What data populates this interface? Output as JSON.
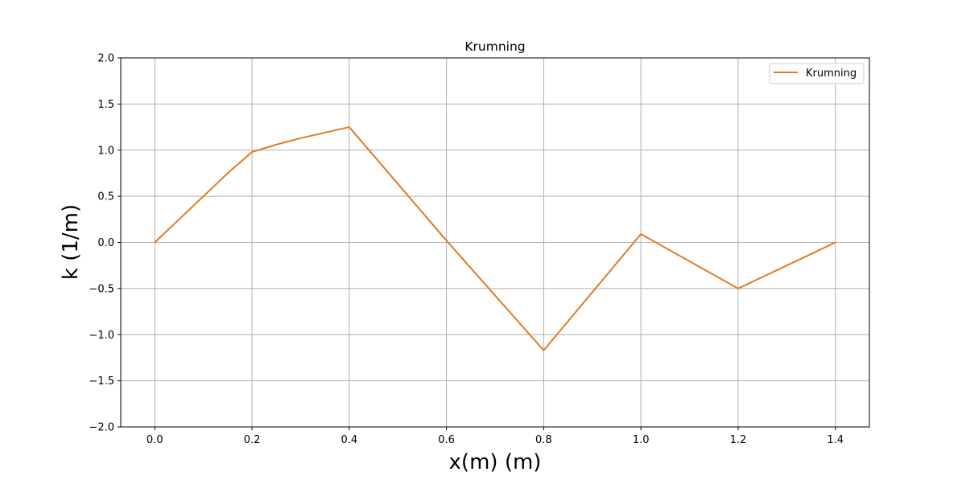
{
  "chart_data": {
    "type": "line",
    "title": "Krumning",
    "xlabel": "x(m) (m)",
    "ylabel": "k (1/m)",
    "xlim": [
      -0.07,
      1.47
    ],
    "ylim": [
      -2.0,
      2.0
    ],
    "xticks": [
      "0.0",
      "0.2",
      "0.4",
      "0.6",
      "0.8",
      "1.0",
      "1.2",
      "1.4"
    ],
    "yticks": [
      "−2.0",
      "−1.5",
      "−1.0",
      "−0.5",
      "0.0",
      "0.5",
      "1.0",
      "1.5",
      "2.0"
    ],
    "grid": true,
    "legend_position": "top-right",
    "series": [
      {
        "name": "Krumning",
        "color": "#e07b24",
        "x": [
          0.0,
          0.05,
          0.1,
          0.15,
          0.2,
          0.25,
          0.3,
          0.35,
          0.4,
          0.6,
          0.8,
          1.0,
          1.2,
          1.4
        ],
        "y": [
          0.0,
          0.25,
          0.5,
          0.75,
          0.98,
          1.06,
          1.13,
          1.19,
          1.25,
          0.02,
          -1.17,
          0.09,
          -0.5,
          0.0
        ]
      }
    ]
  }
}
